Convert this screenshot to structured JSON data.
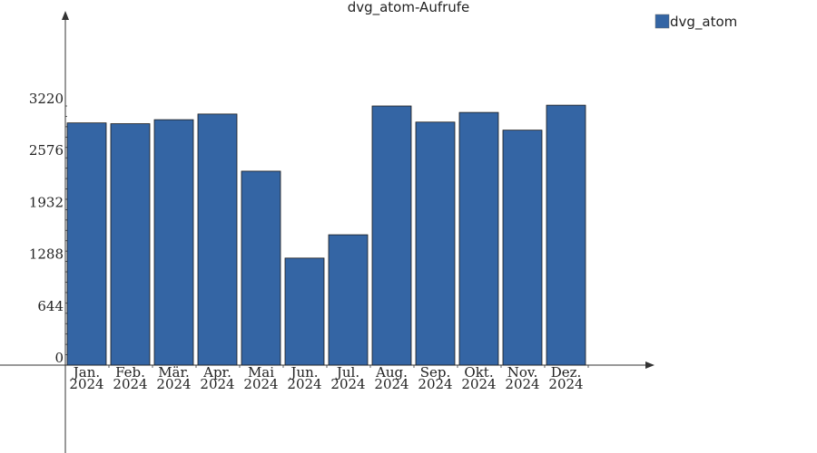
{
  "chart_data": {
    "type": "bar",
    "title": "dvg_atom-Aufrufe",
    "xlabel": "",
    "ylabel": "",
    "categories": [
      [
        "Jan.",
        "2024"
      ],
      [
        "Feb.",
        "2024"
      ],
      [
        "Mär.",
        "2024"
      ],
      [
        "Apr.",
        "2024"
      ],
      [
        "Mai",
        "2024"
      ],
      [
        "Jun.",
        "2024"
      ],
      [
        "Jul.",
        "2024"
      ],
      [
        "Aug.",
        "2024"
      ],
      [
        "Sep.",
        "2024"
      ],
      [
        "Okt.",
        "2024"
      ],
      [
        "Nov.",
        "2024"
      ],
      [
        "Dez.",
        "2024"
      ]
    ],
    "series": [
      {
        "name": "dvg_atom",
        "color": "#3465a4",
        "values": [
          3010,
          3000,
          3050,
          3120,
          2410,
          1330,
          1620,
          3220,
          3020,
          3140,
          2920,
          3230
        ]
      }
    ],
    "yticks": [
      0,
      644,
      1288,
      1932,
      2576,
      3220
    ],
    "ylim": [
      0,
      3220
    ],
    "grid": false,
    "legend": "top-right"
  }
}
